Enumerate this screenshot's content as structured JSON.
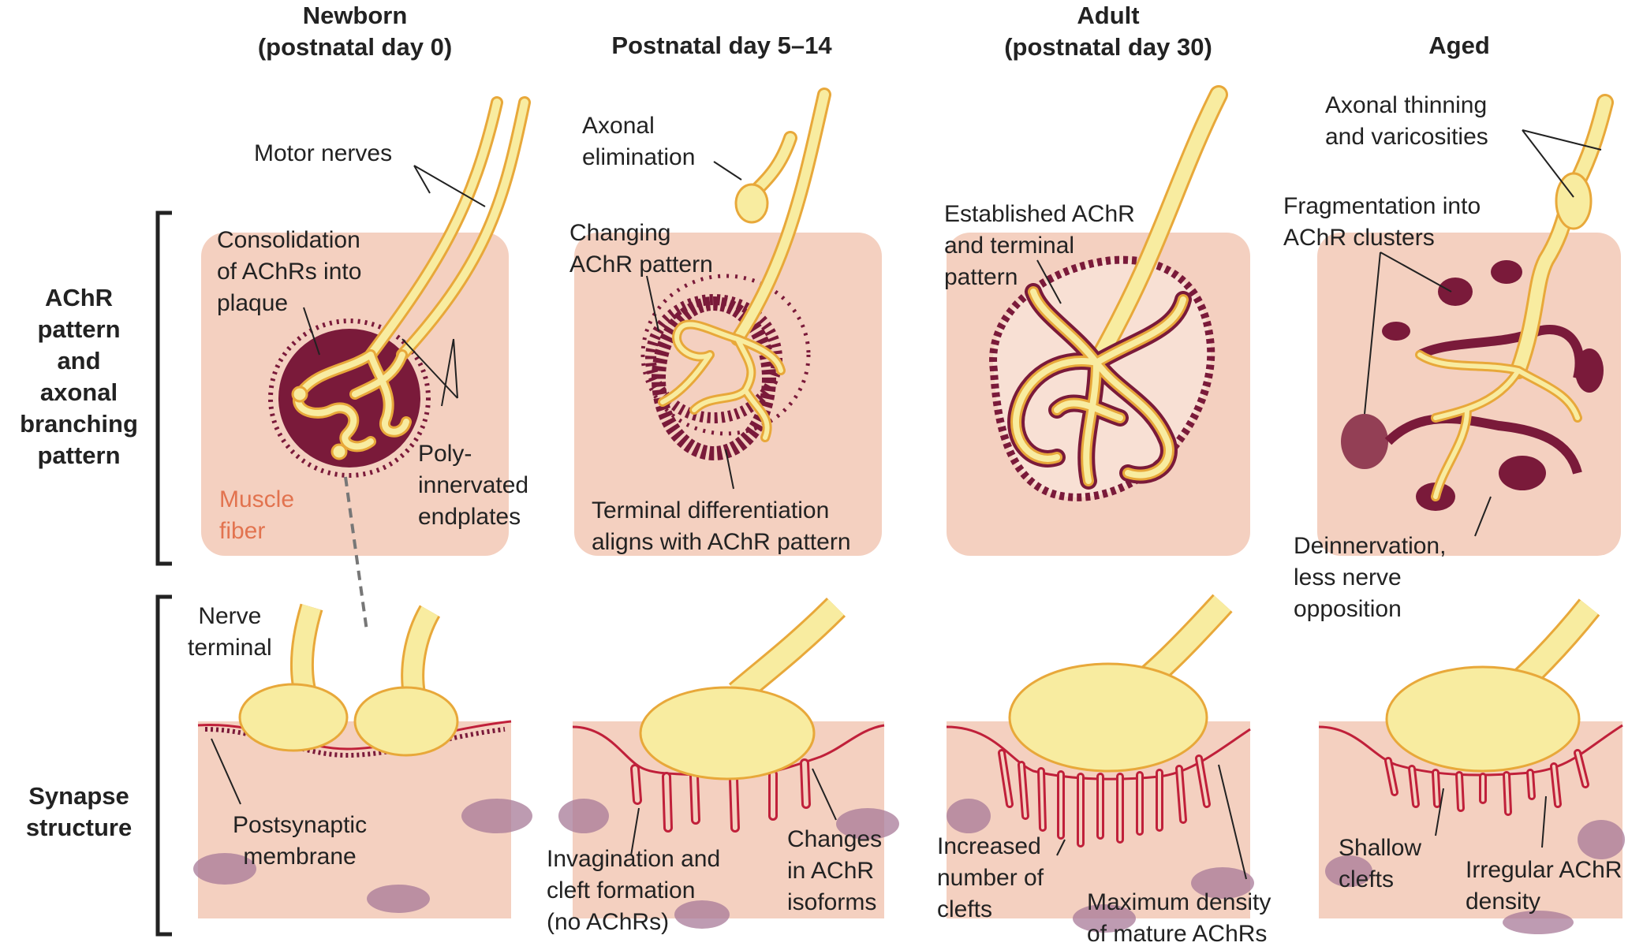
{
  "columns": [
    {
      "line1": "Newborn",
      "line2": "(postnatal day 0)"
    },
    {
      "line1": "Postnatal day 5–14",
      "line2": ""
    },
    {
      "line1": "Adult",
      "line2": "(postnatal day 30)"
    },
    {
      "line1": "Aged",
      "line2": ""
    }
  ],
  "rows": {
    "achr": [
      "AChR",
      "pattern",
      "and",
      "axonal",
      "branching",
      "pattern"
    ],
    "synapse": [
      "Synapse",
      "structure"
    ]
  },
  "labels": {
    "motor_nerves": "Motor nerves",
    "consolidation": [
      "Consolidation",
      "of AChRs into",
      "plaque"
    ],
    "poly_innervated": [
      "Poly-",
      "innervated",
      "endplates"
    ],
    "muscle_fiber": [
      "Muscle",
      "fiber"
    ],
    "axonal_elimination": [
      "Axonal",
      "elimination"
    ],
    "changing_pattern": [
      "Changing",
      "AChR pattern"
    ],
    "terminal_diff": [
      "Terminal differentiation",
      "aligns with AChR pattern"
    ],
    "established": [
      "Established AChR",
      "and terminal",
      "pattern"
    ],
    "axonal_thinning": [
      "Axonal thinning",
      "and varicosities"
    ],
    "fragmentation": [
      "Fragmentation into",
      "AChR clusters"
    ],
    "deinnervation": [
      "Deinnervation,",
      "less nerve",
      "opposition"
    ],
    "nerve_terminal": [
      "Nerve",
      "terminal"
    ],
    "postsynaptic": [
      "Postsynaptic",
      "membrane"
    ],
    "invagination": [
      "Invagination and",
      "cleft formation",
      "(no AChRs)"
    ],
    "isoforms": [
      "Changes",
      "in AChR",
      "isoforms"
    ],
    "increased_clefts": [
      "Increased",
      "number of",
      "clefts"
    ],
    "max_density": [
      "Maximum density",
      "of mature AChRs"
    ],
    "shallow": [
      "Shallow",
      "clefts"
    ],
    "irregular": [
      "Irregular AChR",
      "density"
    ]
  },
  "colors": {
    "muscle": "#f4d0c0",
    "achr": "#7a1a3a",
    "nerve_fill": "#f8eca0",
    "nerve_outline": "#e8a83a",
    "membrane": "#c0203a",
    "nucleus": "#a87a98",
    "muscle_fiber_text": "#e2734f"
  }
}
